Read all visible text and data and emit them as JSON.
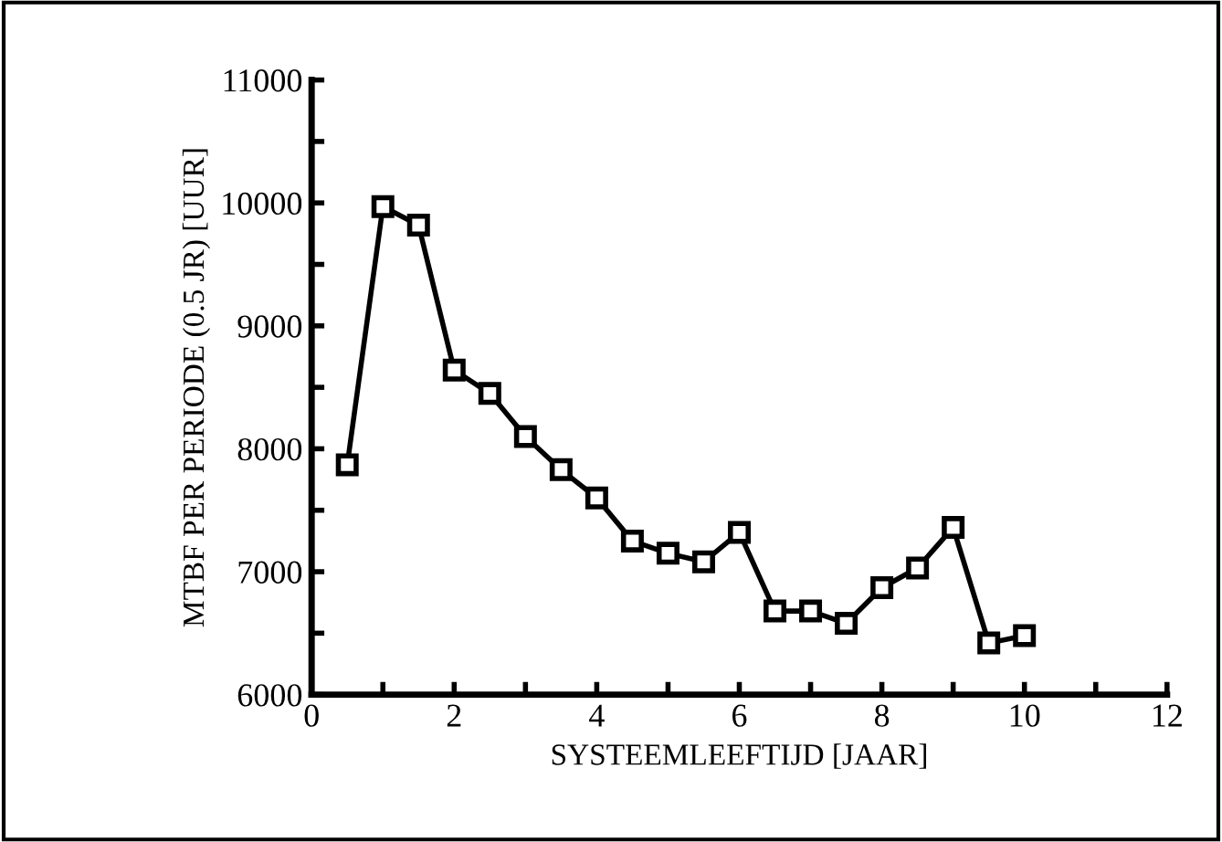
{
  "chart_data": {
    "type": "line",
    "xlabel": "SYSTEEMLEEFTIJD [JAAR]",
    "ylabel": "MTBF PER PERIODE (0.5 JR) [UUR]",
    "x": [
      0.5,
      1,
      1.5,
      2,
      2.5,
      3,
      3.5,
      4,
      4.5,
      5,
      5.5,
      6,
      6.5,
      7,
      7.5,
      8,
      8.5,
      9,
      9.5,
      10
    ],
    "series": [
      {
        "color": "#000000",
        "values": [
          7870,
          9970,
          9820,
          8640,
          8450,
          8100,
          7830,
          7600,
          7250,
          7150,
          7080,
          7320,
          6680,
          6680,
          6580,
          6870,
          7030,
          7360,
          6420,
          6480
        ]
      }
    ],
    "marker": "square",
    "line_style": "solid",
    "grid": false,
    "legend": false,
    "xlim": [
      0,
      12
    ],
    "xticks": [
      0,
      {
        "value": 1,
        "label": null
      },
      2,
      {
        "value": 3,
        "label": null
      },
      4,
      {
        "value": 5,
        "label": null
      },
      6,
      {
        "value": 7,
        "label": null
      },
      8,
      {
        "value": 9,
        "label": null
      },
      10,
      {
        "value": 11,
        "label": null
      },
      12
    ],
    "ylim": [
      6000,
      11000
    ],
    "yticks": [
      6000,
      {
        "value": 6500,
        "label": null
      },
      7000,
      {
        "value": 7500,
        "label": null
      },
      8000,
      {
        "value": 8500,
        "label": null
      },
      9000,
      {
        "value": 9500,
        "label": null
      },
      10000,
      {
        "value": 10500,
        "label": null
      },
      11000
    ]
  }
}
